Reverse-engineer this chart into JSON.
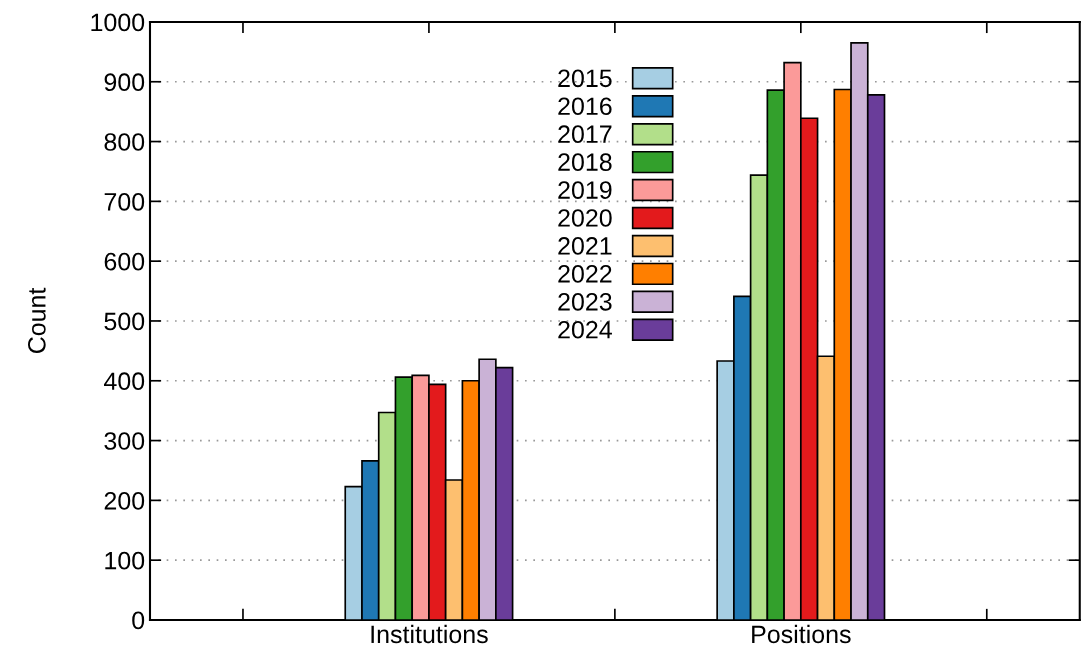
{
  "chart_data": {
    "type": "bar",
    "ylabel": "Count",
    "categories": [
      null,
      "Institutions",
      null,
      "Positions",
      null
    ],
    "series": [
      {
        "name": "2015",
        "color": "#a6cee3",
        "values": [
          null,
          223,
          null,
          433,
          null
        ]
      },
      {
        "name": "2016",
        "color": "#1f78b4",
        "values": [
          null,
          266,
          null,
          541,
          null
        ]
      },
      {
        "name": "2017",
        "color": "#b2df8a",
        "values": [
          null,
          347,
          null,
          744,
          null
        ]
      },
      {
        "name": "2018",
        "color": "#33a02c",
        "values": [
          null,
          406,
          null,
          886,
          null
        ]
      },
      {
        "name": "2019",
        "color": "#fb9a99",
        "values": [
          null,
          409,
          null,
          932,
          null
        ]
      },
      {
        "name": "2020",
        "color": "#e31a1c",
        "values": [
          null,
          394,
          null,
          839,
          null
        ]
      },
      {
        "name": "2021",
        "color": "#fdbf6f",
        "values": [
          null,
          234,
          null,
          441,
          null
        ]
      },
      {
        "name": "2022",
        "color": "#ff7f00",
        "values": [
          null,
          400,
          null,
          887,
          null
        ]
      },
      {
        "name": "2023",
        "color": "#cab2d6",
        "values": [
          null,
          436,
          null,
          965,
          null
        ]
      },
      {
        "name": "2024",
        "color": "#6a3d9a",
        "values": [
          null,
          422,
          null,
          878,
          null
        ]
      }
    ],
    "ylim": [
      0,
      1000
    ],
    "yticks": [
      0,
      100,
      200,
      300,
      400,
      500,
      600,
      700,
      800,
      900,
      1000
    ],
    "grid": "y",
    "legend": "top"
  }
}
